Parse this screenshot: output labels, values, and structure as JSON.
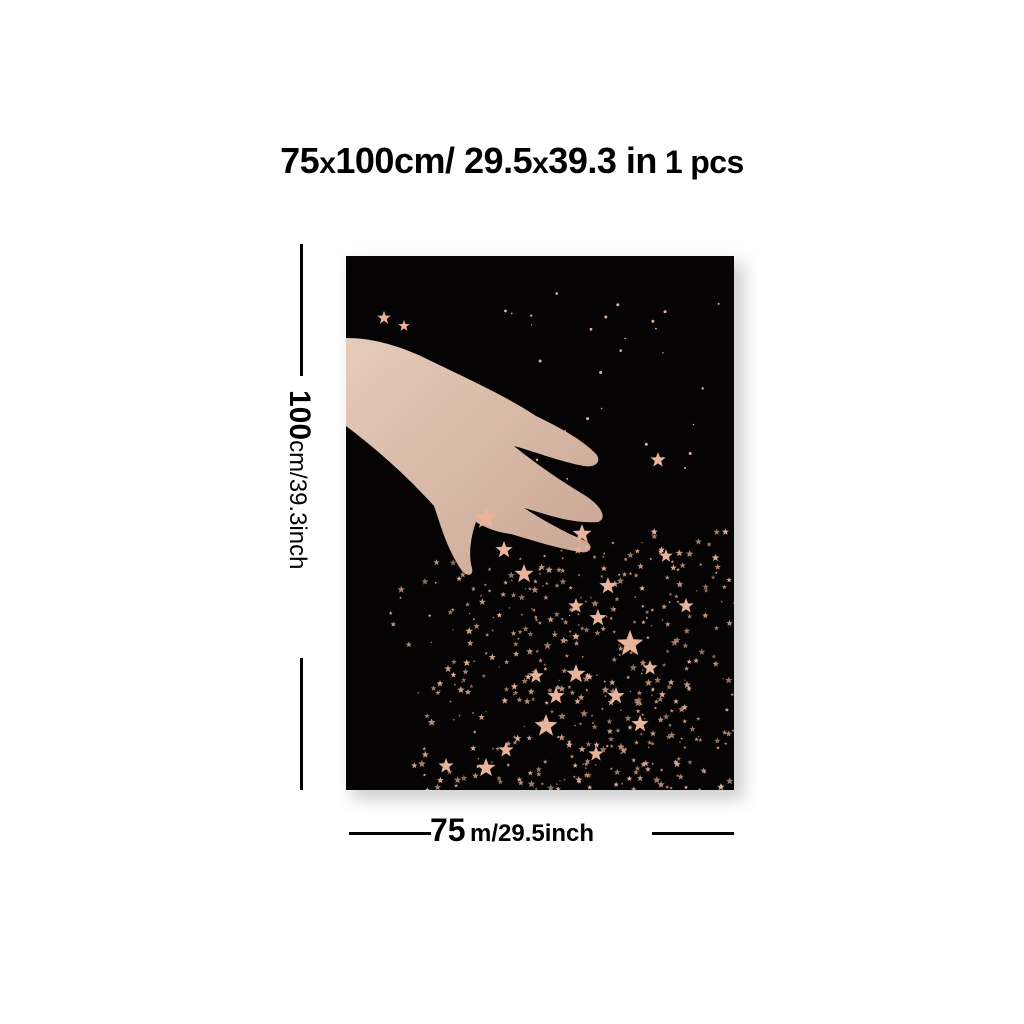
{
  "heading": {
    "width_value": "75",
    "times1": "x",
    "height_value": "100",
    "unit_cm": "cm/",
    "width_in": "29.5",
    "times2": "x",
    "height_in": "39.3",
    "unit_in": "in",
    "count": "1",
    "count_unit": "pcs"
  },
  "height_dimension": {
    "value": "100",
    "unit_text": "cm/39.3inch"
  },
  "width_dimension": {
    "value": "75",
    "unit_text": "m/29.5inch"
  },
  "colors": {
    "canvas_background": "#050303",
    "hand": "#d9b8a6",
    "stars": "#e8b49a"
  }
}
